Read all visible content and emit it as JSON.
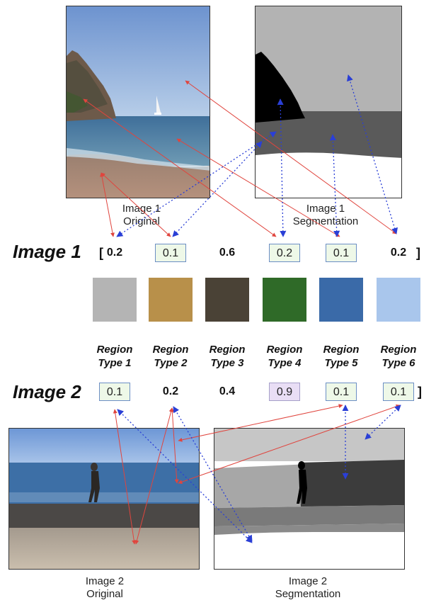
{
  "image1": {
    "row_title": "Image 1",
    "bracket_open": "[",
    "bracket_close": "]",
    "values": [
      "0.2",
      "0.1",
      "0.6",
      "0.2",
      "0.1",
      "0.2"
    ],
    "highlighted": [
      false,
      true,
      false,
      true,
      true,
      false
    ],
    "original_caption": [
      "Image 1",
      "Original"
    ],
    "segmentation_caption": [
      "Image 1",
      "Segmentation"
    ]
  },
  "image2": {
    "row_title": "Image 2",
    "bracket_open": "[",
    "bracket_close": "]",
    "values": [
      "0.1",
      "0.2",
      "0.4",
      "0.9",
      "0.1",
      "0.1"
    ],
    "highlighted": [
      true,
      false,
      false,
      "purple",
      true,
      true
    ],
    "original_caption": [
      "Image 2",
      "Original"
    ],
    "segmentation_caption": [
      "Image 2",
      "Segmentation"
    ]
  },
  "region_types": [
    {
      "line1": "Region",
      "line2": "Type 1",
      "swatch_color": "#b4b4b4"
    },
    {
      "line1": "Region",
      "line2": "Type 2",
      "swatch_color": "#b8904a"
    },
    {
      "line1": "Region",
      "line2": "Type 3",
      "swatch_color": "#4a4236"
    },
    {
      "line1": "Region",
      "line2": "Type 4",
      "swatch_color": "#2f6a28"
    },
    {
      "line1": "Region",
      "line2": "Type 5",
      "swatch_color": "#3a6aa8"
    },
    {
      "line1": "Region",
      "line2": "Type 6",
      "swatch_color": "#a9c6ec"
    }
  ],
  "colors": {
    "red_arrow": "#e0453e",
    "blue_arrow": "#2a3fd6",
    "box_border": "#6c8fc4",
    "box_fill": "#eef8e8",
    "box_fill_purple": "#e9def5"
  }
}
